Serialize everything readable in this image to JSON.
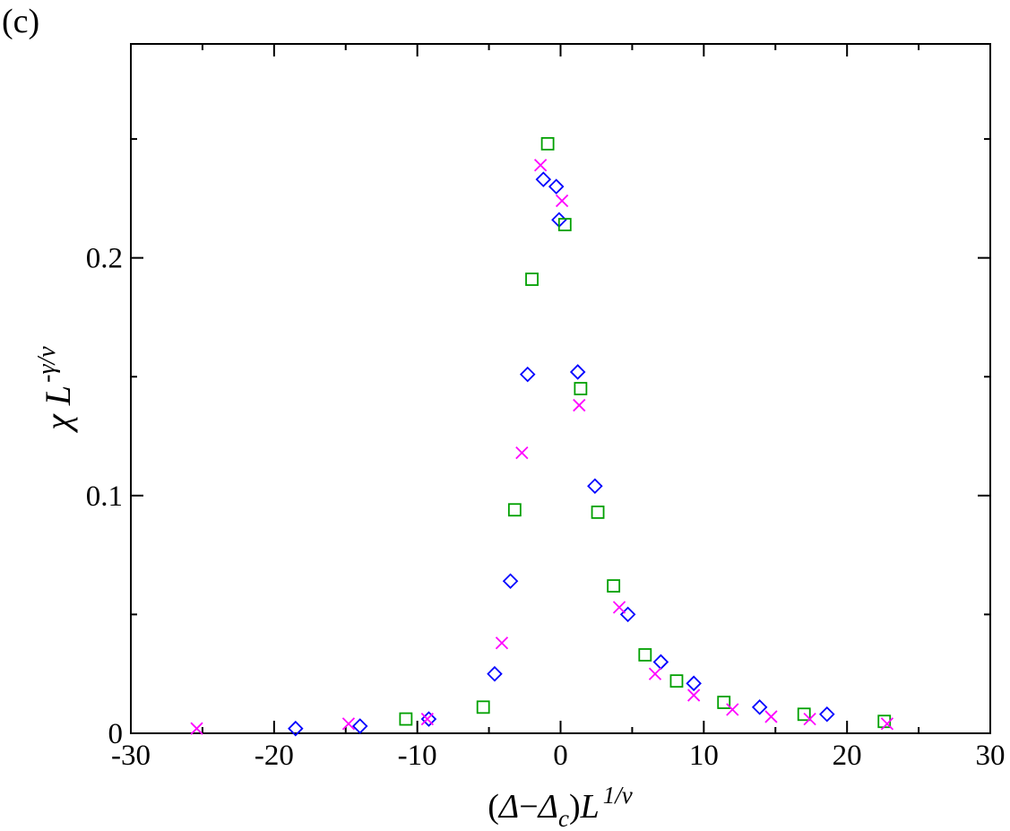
{
  "chart_data": {
    "type": "scatter",
    "panel_label": "(c)",
    "xlabel": {
      "pre": "(",
      "delta": "Δ",
      "dash": "−",
      "delta_c": "Δ",
      "sub_c": "c",
      "post": ")",
      "L": "L",
      "exp": "1/ν"
    },
    "ylabel": {
      "chi": "χ",
      "L": "L",
      "exp": "-γ/ν"
    },
    "xlim": [
      -30,
      30
    ],
    "ylim": [
      0,
      0.29
    ],
    "x_ticks": [
      -30,
      -20,
      -10,
      0,
      10,
      20,
      30
    ],
    "x_tick_labels": [
      "-30",
      "-20",
      "-10",
      "0",
      "10",
      "20",
      "30"
    ],
    "y_ticks": [
      0,
      0.1,
      0.2
    ],
    "y_tick_labels": [
      "0",
      "0.1",
      "0.2"
    ],
    "x_minor_ticks": [
      -25,
      -15,
      -5,
      5,
      15,
      25
    ],
    "y_minor_ticks": [
      0.05,
      0.15,
      0.25
    ],
    "grid": false,
    "series": [
      {
        "marker": "diamond",
        "color": "#0000ff",
        "points": [
          [
            -18.5,
            0.002
          ],
          [
            -14.0,
            0.003
          ],
          [
            -9.2,
            0.006
          ],
          [
            -4.6,
            0.025
          ],
          [
            -3.5,
            0.064
          ],
          [
            -2.3,
            0.151
          ],
          [
            -1.2,
            0.233
          ],
          [
            -0.3,
            0.23
          ],
          [
            -0.1,
            0.216
          ],
          [
            1.2,
            0.152
          ],
          [
            2.4,
            0.104
          ],
          [
            4.7,
            0.05
          ],
          [
            7.0,
            0.03
          ],
          [
            9.3,
            0.021
          ],
          [
            13.9,
            0.011
          ],
          [
            18.6,
            0.008
          ]
        ]
      },
      {
        "marker": "square",
        "color": "#00a000",
        "points": [
          [
            -10.8,
            0.006
          ],
          [
            -5.4,
            0.011
          ],
          [
            -3.2,
            0.094
          ],
          [
            -2.0,
            0.191
          ],
          [
            -0.9,
            0.248
          ],
          [
            0.3,
            0.214
          ],
          [
            1.4,
            0.145
          ],
          [
            2.6,
            0.093
          ],
          [
            3.7,
            0.062
          ],
          [
            5.9,
            0.033
          ],
          [
            8.1,
            0.022
          ],
          [
            11.4,
            0.013
          ],
          [
            17.0,
            0.008
          ],
          [
            22.6,
            0.005
          ]
        ]
      },
      {
        "marker": "x",
        "color": "#ff00ff",
        "points": [
          [
            -25.4,
            0.002
          ],
          [
            -14.8,
            0.004
          ],
          [
            -9.3,
            0.006
          ],
          [
            -4.1,
            0.038
          ],
          [
            -2.7,
            0.118
          ],
          [
            -1.4,
            0.239
          ],
          [
            0.1,
            0.224
          ],
          [
            1.3,
            0.138
          ],
          [
            4.1,
            0.053
          ],
          [
            6.6,
            0.025
          ],
          [
            9.3,
            0.016
          ],
          [
            12.0,
            0.01
          ],
          [
            14.7,
            0.007
          ],
          [
            17.4,
            0.006
          ],
          [
            22.8,
            0.004
          ]
        ]
      }
    ]
  }
}
